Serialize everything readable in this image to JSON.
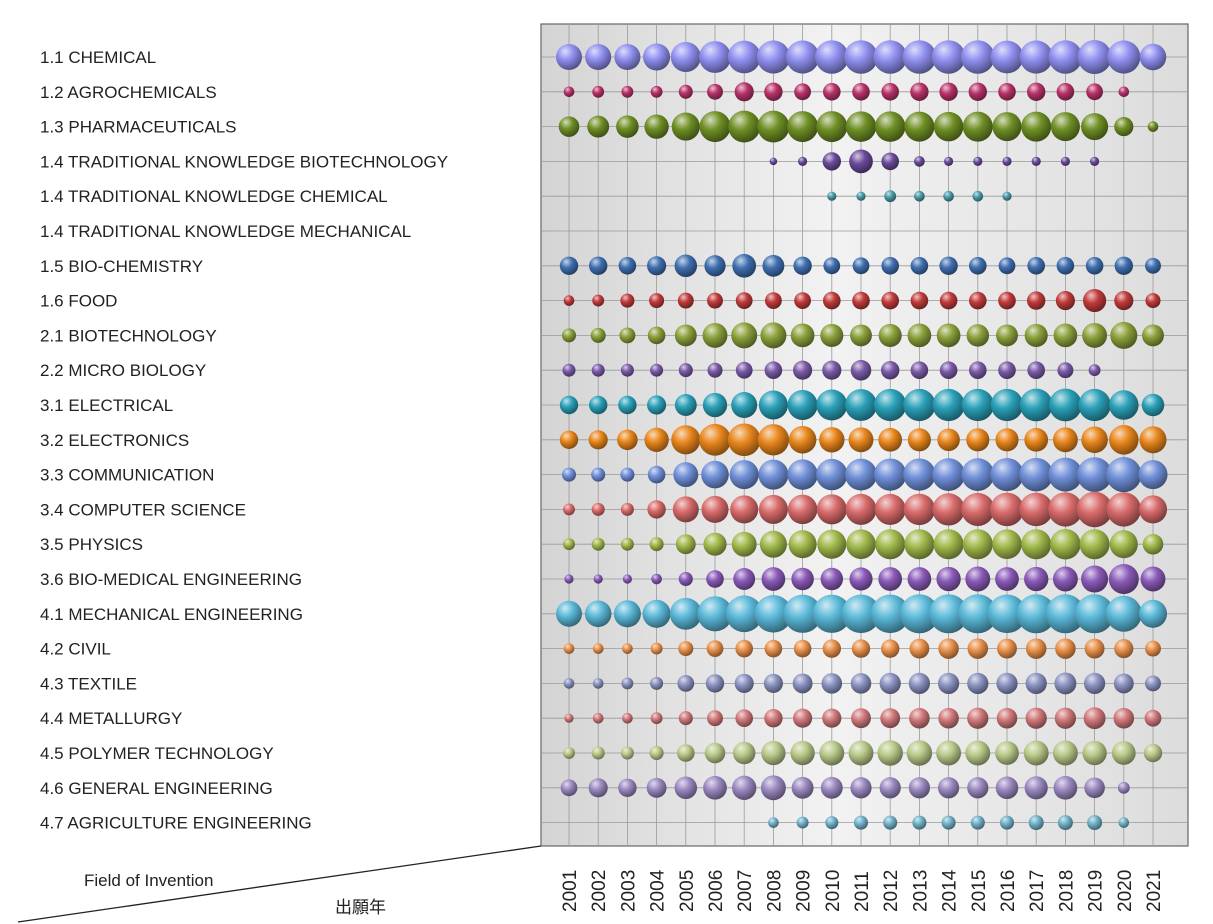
{
  "chart_data": {
    "type": "bubble",
    "corner_labels": {
      "row_header": "Field of Invention",
      "column_header": "出願年"
    },
    "x": [
      "2001",
      "2002",
      "2003",
      "2004",
      "2005",
      "2006",
      "2007",
      "2008",
      "2009",
      "2010",
      "2011",
      "2012",
      "2013",
      "2014",
      "2015",
      "2016",
      "2017",
      "2018",
      "2019",
      "2020",
      "2021"
    ],
    "series": [
      {
        "name": "1.1 CHEMICAL",
        "color": "#8f8ff0",
        "values": [
          24,
          24,
          24,
          26,
          32,
          36,
          38,
          39,
          39,
          40,
          40,
          40,
          40,
          40,
          40,
          38,
          39,
          40,
          41,
          39,
          25
        ]
      },
      {
        "name": "1.2 AGROCHEMICALS",
        "color": "#b8326a",
        "values": [
          4,
          5,
          5,
          5,
          7,
          9,
          13,
          12,
          10,
          11,
          11,
          11,
          12,
          12,
          12,
          11,
          12,
          11,
          10,
          4,
          0
        ]
      },
      {
        "name": "1.3 PHARMACEUTICALS",
        "color": "#6f8f25",
        "values": [
          15,
          17,
          18,
          21,
          28,
          34,
          36,
          36,
          34,
          34,
          33,
          33,
          32,
          31,
          32,
          30,
          32,
          30,
          26,
          13,
          4
        ]
      },
      {
        "name": "1.4 TRADITIONAL KNOWLEDGE BIOTECHNOLOGY",
        "color": "#6a4a9a",
        "values": [
          0,
          0,
          0,
          0,
          0,
          0,
          0,
          2,
          3,
          12,
          20,
          11,
          4,
          3,
          3,
          3,
          3,
          3,
          3,
          0,
          0
        ]
      },
      {
        "name": "1.4 TRADITIONAL KNOWLEDGE CHEMICAL",
        "color": "#4a9aa8",
        "values": [
          0,
          0,
          0,
          0,
          0,
          0,
          0,
          0,
          0,
          3,
          3,
          5,
          4,
          4,
          4,
          3,
          0,
          0,
          0,
          0,
          0
        ]
      },
      {
        "name": "1.4 TRADITIONAL KNOWLEDGE MECHANICAL",
        "color": "#4a9aa8",
        "values": [
          0,
          0,
          0,
          0,
          0,
          0,
          0,
          0,
          0,
          0,
          0,
          0,
          0,
          0,
          0,
          0,
          0,
          0,
          0,
          0,
          0
        ]
      },
      {
        "name": "1.5 BIO-CHEMISTRY",
        "color": "#3f6fb0",
        "values": [
          12,
          12,
          11,
          13,
          18,
          16,
          20,
          17,
          12,
          10,
          10,
          11,
          11,
          12,
          11,
          10,
          11,
          11,
          11,
          12,
          9
        ]
      },
      {
        "name": "1.6 FOOD",
        "color": "#c03a3a",
        "values": [
          4,
          5,
          7,
          8,
          9,
          9,
          10,
          10,
          10,
          11,
          11,
          11,
          11,
          11,
          11,
          11,
          12,
          13,
          19,
          13,
          8
        ]
      },
      {
        "name": "2.1 BIOTECHNOLOGY",
        "color": "#8aa03a",
        "values": [
          7,
          8,
          9,
          11,
          17,
          22,
          24,
          24,
          20,
          19,
          17,
          19,
          20,
          20,
          18,
          17,
          19,
          20,
          22,
          26,
          17
        ]
      },
      {
        "name": "2.2 MICRO BIOLOGY",
        "color": "#7a5aa8",
        "values": [
          6,
          6,
          6,
          6,
          7,
          8,
          10,
          11,
          13,
          13,
          15,
          12,
          11,
          11,
          11,
          11,
          11,
          9,
          5,
          0,
          0
        ]
      },
      {
        "name": "3.1 ELECTRICAL",
        "color": "#2aa0b8",
        "values": [
          12,
          12,
          12,
          13,
          17,
          21,
          24,
          30,
          32,
          34,
          36,
          37,
          37,
          37,
          37,
          37,
          38,
          38,
          37,
          31,
          18
        ]
      },
      {
        "name": "3.2 ELECTRONICS",
        "color": "#e8861c",
        "values": [
          12,
          13,
          15,
          21,
          30,
          36,
          38,
          35,
          27,
          23,
          22,
          20,
          19,
          18,
          19,
          19,
          20,
          22,
          25,
          31,
          26
        ]
      },
      {
        "name": "3.3 COMMUNICATION",
        "color": "#6f8fd8",
        "values": [
          7,
          7,
          7,
          11,
          22,
          27,
          30,
          32,
          33,
          35,
          36,
          37,
          37,
          38,
          38,
          39,
          40,
          41,
          43,
          44,
          30
        ]
      },
      {
        "name": "3.4 COMPUTER SCIENCE",
        "color": "#d86a6a",
        "values": [
          5,
          6,
          6,
          12,
          24,
          26,
          28,
          30,
          31,
          32,
          34,
          34,
          35,
          37,
          39,
          40,
          40,
          42,
          45,
          42,
          28
        ]
      },
      {
        "name": "3.5 PHYSICS",
        "color": "#a0b84a",
        "values": [
          5,
          6,
          6,
          7,
          14,
          19,
          22,
          26,
          28,
          30,
          31,
          32,
          32,
          32,
          32,
          31,
          32,
          33,
          32,
          28,
          15
        ]
      },
      {
        "name": "3.6 BIO-MEDICAL ENGINEERING",
        "color": "#8a5ab8",
        "values": [
          3,
          3,
          3,
          4,
          7,
          11,
          17,
          20,
          18,
          18,
          19,
          20,
          20,
          21,
          22,
          20,
          21,
          22,
          26,
          32,
          22
        ]
      },
      {
        "name": "4.1 MECHANICAL ENGINEERING",
        "color": "#5ab8d8",
        "values": [
          24,
          25,
          26,
          28,
          36,
          44,
          48,
          50,
          52,
          52,
          53,
          53,
          54,
          54,
          54,
          53,
          54,
          54,
          54,
          46,
          28
        ]
      },
      {
        "name": "4.2 CIVIL",
        "color": "#e8904a",
        "values": [
          4,
          4,
          4,
          5,
          8,
          10,
          11,
          11,
          11,
          12,
          12,
          12,
          14,
          15,
          15,
          14,
          15,
          15,
          14,
          13,
          9
        ]
      },
      {
        "name": "4.3 TEXTILE",
        "color": "#8a92c0",
        "values": [
          4,
          4,
          5,
          6,
          10,
          12,
          13,
          13,
          14,
          15,
          15,
          16,
          16,
          16,
          16,
          16,
          16,
          17,
          16,
          14,
          9
        ]
      },
      {
        "name": "4.4 METALLURGY",
        "color": "#d0787a",
        "values": [
          3,
          4,
          4,
          5,
          7,
          9,
          11,
          12,
          13,
          13,
          14,
          14,
          15,
          15,
          16,
          15,
          16,
          16,
          17,
          15,
          10
        ]
      },
      {
        "name": "4.5 POLYMER TECHNOLOGY",
        "color": "#b8c888",
        "values": [
          5,
          6,
          6,
          7,
          11,
          15,
          18,
          21,
          21,
          22,
          22,
          23,
          23,
          22,
          22,
          20,
          22,
          22,
          21,
          20,
          12
        ]
      },
      {
        "name": "4.6 GENERAL ENGINEERING",
        "color": "#9a88c0",
        "values": [
          10,
          13,
          12,
          14,
          18,
          20,
          21,
          22,
          17,
          17,
          16,
          16,
          16,
          16,
          16,
          18,
          19,
          20,
          15,
          5,
          0
        ]
      },
      {
        "name": "4.7 AGRICULTURE ENGINEERING",
        "color": "#70b0c8",
        "values": [
          0,
          0,
          0,
          0,
          0,
          0,
          0,
          4,
          5,
          6,
          7,
          7,
          7,
          7,
          7,
          7,
          8,
          8,
          8,
          4,
          0
        ]
      }
    ]
  }
}
